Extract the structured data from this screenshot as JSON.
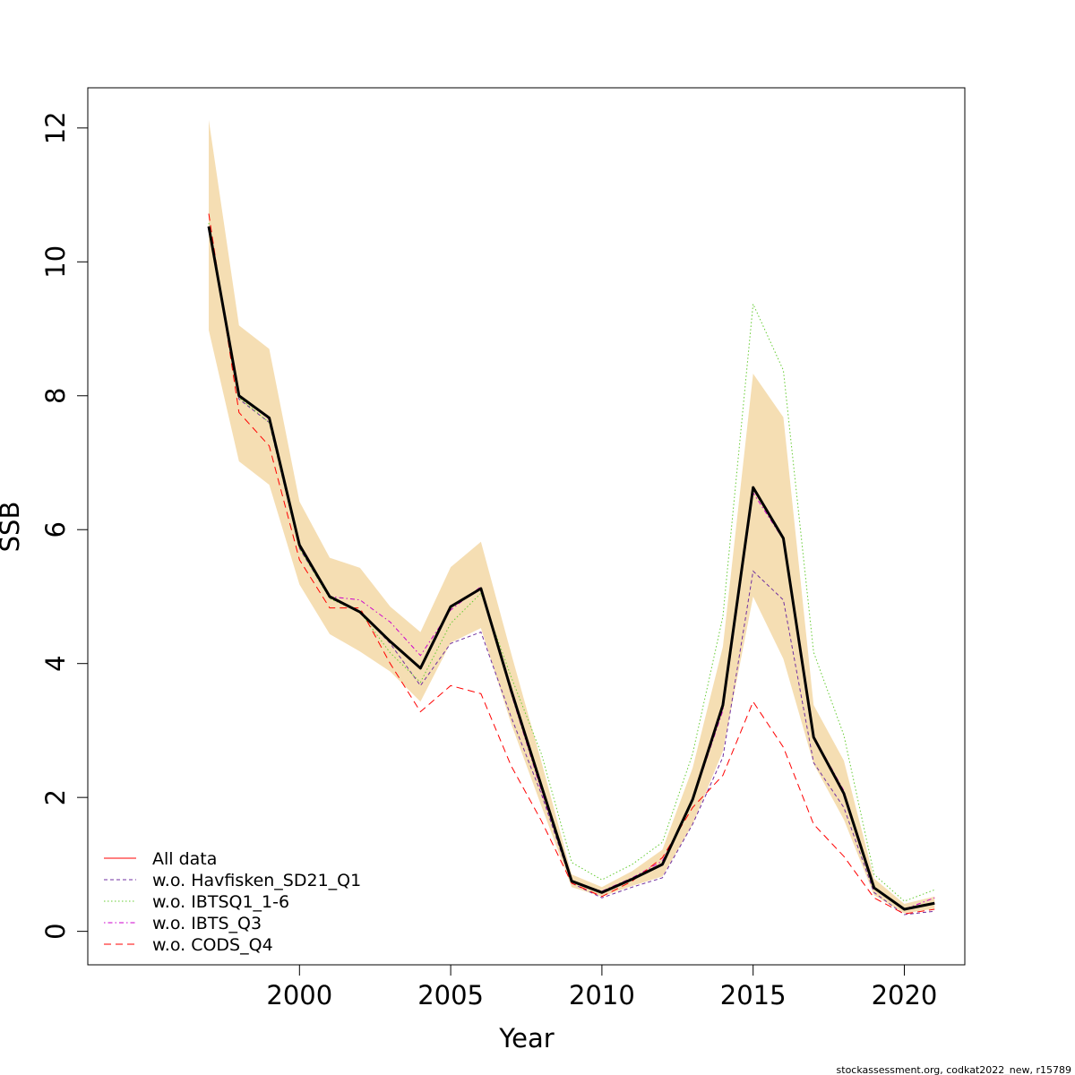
{
  "footer": "stockassessment.org, codkat2022_new, r15789",
  "chart_data": {
    "type": "line",
    "title": "",
    "xlabel": "Year",
    "ylabel": "SSB",
    "xlim": [
      1993,
      2022
    ],
    "ylim": [
      -0.5,
      12.6
    ],
    "x_ticks": [
      2000,
      2005,
      2010,
      2015,
      2020
    ],
    "x_tick_labels": [
      "2000",
      "2005",
      "2010",
      "2015",
      "2020"
    ],
    "y_ticks": [
      0,
      2,
      4,
      6,
      8,
      10,
      12
    ],
    "y_tick_labels": [
      "0",
      "2",
      "4",
      "6",
      "8",
      "10",
      "12"
    ],
    "grid": false,
    "legend_position": "bottom-left",
    "x": [
      1997,
      1998,
      1999,
      2000,
      2001,
      2002,
      2003,
      2004,
      2005,
      2006,
      2007,
      2008,
      2009,
      2010,
      2011,
      2012,
      2013,
      2014,
      2015,
      2016,
      2017,
      2018,
      2019,
      2020,
      2021
    ],
    "estimate": {
      "values": [
        10.53,
        8.0,
        7.67,
        5.77,
        5.0,
        4.77,
        4.33,
        3.93,
        4.85,
        5.12,
        3.6,
        2.17,
        0.75,
        0.58,
        0.78,
        1.0,
        1.97,
        3.38,
        6.63,
        5.87,
        2.9,
        2.06,
        0.65,
        0.33,
        0.42
      ],
      "color": "#000000"
    },
    "confidence_band": {
      "lower": [
        8.98,
        7.02,
        6.67,
        5.18,
        4.44,
        4.18,
        3.88,
        3.43,
        4.31,
        4.53,
        3.1,
        1.87,
        0.66,
        0.52,
        0.68,
        0.82,
        1.6,
        2.69,
        5.0,
        4.07,
        2.5,
        1.67,
        0.54,
        0.27,
        0.34
      ],
      "upper": [
        12.12,
        9.05,
        8.7,
        6.42,
        5.58,
        5.43,
        4.85,
        4.47,
        5.44,
        5.82,
        4.15,
        2.53,
        0.85,
        0.66,
        0.9,
        1.22,
        2.44,
        4.25,
        8.33,
        7.68,
        3.38,
        2.55,
        0.79,
        0.41,
        0.52
      ],
      "color": "#f5deb3"
    },
    "series": [
      {
        "name": "All data",
        "line": "solid",
        "color": "#ff0000",
        "values": [
          10.53,
          8.0,
          7.67,
          5.77,
          5.0,
          4.77,
          4.33,
          3.93,
          4.85,
          5.12,
          3.6,
          2.17,
          0.75,
          0.58,
          0.78,
          1.0,
          1.97,
          3.38,
          6.63,
          5.87,
          2.9,
          2.06,
          0.65,
          0.33,
          0.42
        ]
      },
      {
        "name": "w.o. Havfisken_SD21_Q1",
        "line": "dashed",
        "color": "#7030a0",
        "values": [
          10.47,
          7.95,
          7.6,
          5.72,
          4.98,
          4.77,
          4.3,
          3.67,
          4.3,
          4.47,
          3.2,
          2.05,
          0.72,
          0.5,
          0.66,
          0.8,
          1.6,
          2.6,
          5.38,
          4.95,
          2.52,
          1.85,
          0.58,
          0.25,
          0.3
        ]
      },
      {
        "name": "w.o. IBTSQ1_1-6",
        "line": "dotted",
        "color": "#66cc33",
        "values": [
          10.58,
          7.97,
          7.6,
          5.72,
          4.97,
          4.77,
          4.16,
          3.72,
          4.6,
          5.05,
          3.8,
          2.65,
          1.03,
          0.77,
          1.0,
          1.33,
          2.65,
          4.7,
          9.37,
          8.38,
          4.17,
          2.93,
          0.85,
          0.45,
          0.62
        ]
      },
      {
        "name": "w.o. IBTS_Q3",
        "line": "dotdash",
        "color": "#cc00cc",
        "values": [
          10.5,
          8.0,
          7.65,
          5.75,
          5.0,
          4.95,
          4.62,
          4.12,
          4.8,
          5.15,
          3.55,
          2.1,
          0.74,
          0.6,
          0.8,
          1.05,
          1.95,
          3.3,
          6.55,
          5.85,
          2.92,
          2.1,
          0.65,
          0.33,
          0.5
        ]
      },
      {
        "name": "w.o. CODS_Q4",
        "line": "longdash",
        "color": "#ff0000",
        "values": [
          10.72,
          7.75,
          7.25,
          5.55,
          4.83,
          4.83,
          4.0,
          3.28,
          3.67,
          3.55,
          2.47,
          1.65,
          0.72,
          0.52,
          0.75,
          1.1,
          1.85,
          2.33,
          3.43,
          2.75,
          1.6,
          1.12,
          0.5,
          0.26,
          0.33
        ]
      }
    ]
  }
}
